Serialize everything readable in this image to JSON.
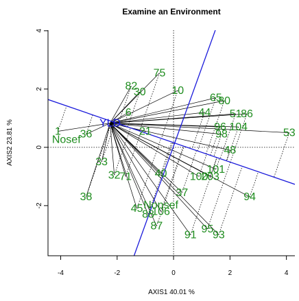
{
  "colors": {
    "site": "#1e8c1e",
    "variable": "#1a1adb",
    "line": "#000000"
  },
  "chart_data": {
    "type": "scatter",
    "title": "Examine an Environment",
    "xlabel": "AXIS1 40.01 %",
    "ylabel": "AXIS2 23.81 %",
    "xlim": [
      -4.45,
      4.3
    ],
    "ylim": [
      -3.72,
      4.02
    ],
    "x_ticks": [
      -4,
      -2,
      0,
      2,
      4
    ],
    "y_ticks": [
      -2,
      0,
      2,
      4
    ],
    "origin": {
      "x": 0,
      "y": 0
    },
    "reference_lines": {
      "x": 0,
      "y": 0
    },
    "variables": [
      {
        "label": "YLD",
        "x": -2.25,
        "y": 0.83
      },
      {
        "label": "Nosef",
        "x": -3.8,
        "y": 0.27
      },
      {
        "label": "Nonsef",
        "x": -0.45,
        "y": -1.98
      }
    ],
    "biplot_axes": [
      {
        "name": "YLD",
        "from": [
          -4.45,
          1.64
        ],
        "to": [
          4.3,
          -1.27
        ]
      },
      {
        "name": "Nonsef",
        "from": [
          -1.4,
          -3.72
        ],
        "to": [
          1.48,
          4.02
        ]
      }
    ],
    "sites": [
      {
        "label": "1",
        "x": -4.1,
        "y": 0.55
      },
      {
        "label": "38",
        "x": -3.1,
        "y": -1.7
      },
      {
        "label": "53",
        "x": 4.1,
        "y": 0.5
      },
      {
        "label": "94",
        "x": 2.7,
        "y": -1.7
      },
      {
        "label": "93",
        "x": 1.6,
        "y": -3.0
      },
      {
        "label": "95",
        "x": 1.2,
        "y": -2.8
      },
      {
        "label": "91",
        "x": 0.6,
        "y": -3.0
      },
      {
        "label": "87",
        "x": -0.6,
        "y": -2.7
      },
      {
        "label": "45",
        "x": -1.3,
        "y": -2.1
      },
      {
        "label": "88",
        "x": -0.9,
        "y": -2.3
      },
      {
        "label": "106",
        "x": -0.45,
        "y": -2.2
      },
      {
        "label": "75",
        "x": -0.5,
        "y": 2.55
      },
      {
        "label": "10",
        "x": 0.15,
        "y": 1.95
      },
      {
        "label": "30",
        "x": -1.2,
        "y": 1.9
      },
      {
        "label": "82",
        "x": -1.5,
        "y": 2.1
      },
      {
        "label": "65",
        "x": 1.5,
        "y": 1.7
      },
      {
        "label": "80",
        "x": 1.8,
        "y": 1.6
      },
      {
        "label": "44",
        "x": 1.1,
        "y": 1.2
      },
      {
        "label": "51",
        "x": 2.2,
        "y": 1.15
      },
      {
        "label": "86",
        "x": 2.6,
        "y": 1.15
      },
      {
        "label": "96",
        "x": 1.65,
        "y": 0.7
      },
      {
        "label": "104",
        "x": 2.3,
        "y": 0.7
      },
      {
        "label": "98",
        "x": 1.7,
        "y": 0.45
      },
      {
        "label": "48",
        "x": 2.0,
        "y": -0.1
      },
      {
        "label": "101",
        "x": 1.5,
        "y": -0.75
      },
      {
        "label": "203",
        "x": 1.3,
        "y": -1.0
      },
      {
        "label": "37",
        "x": 0.3,
        "y": -1.55
      },
      {
        "label": "40",
        "x": -0.45,
        "y": -0.9
      },
      {
        "label": "32",
        "x": -2.1,
        "y": -0.95
      },
      {
        "label": "71",
        "x": -1.7,
        "y": -1.0
      },
      {
        "label": "33",
        "x": -2.55,
        "y": -0.5
      },
      {
        "label": "21",
        "x": -1.0,
        "y": 0.55
      },
      {
        "label": "6",
        "x": -1.6,
        "y": 1.2
      },
      {
        "label": "36",
        "x": -3.1,
        "y": 0.45
      },
      {
        "label": "100",
        "x": 0.9,
        "y": -1.0
      }
    ]
  }
}
